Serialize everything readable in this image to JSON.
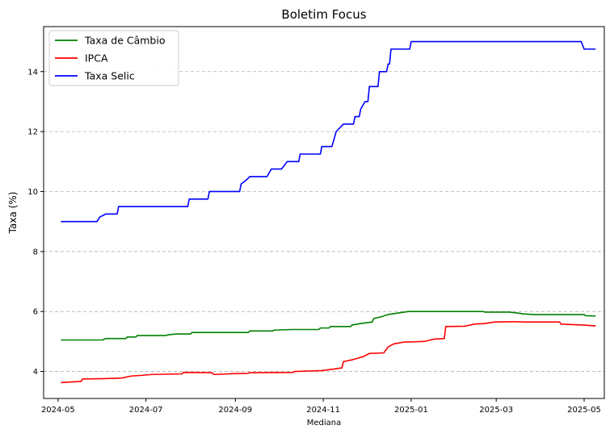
{
  "chart_data": {
    "type": "line",
    "title": "Boletim Focus",
    "xlabel": "Mediana",
    "ylabel": "Taxa (%)",
    "x_ticks": [
      "2024-05",
      "2024-07",
      "2024-09",
      "2024-11",
      "2025-01",
      "2025-03",
      "2025-05"
    ],
    "y_ticks": [
      4,
      6,
      8,
      10,
      12,
      14
    ],
    "xlim": [
      "2024-04-21",
      "2025-05-15"
    ],
    "ylim": [
      3.1,
      15.5
    ],
    "grid": "y-dashed",
    "legend_position": "top-left",
    "series": [
      {
        "name": "Taxa de Câmbio",
        "color": "#008000",
        "points": [
          [
            "2024-05-03",
            5.05
          ],
          [
            "2024-06-01",
            5.05
          ],
          [
            "2024-06-03",
            5.1
          ],
          [
            "2024-06-17",
            5.1
          ],
          [
            "2024-06-18",
            5.15
          ],
          [
            "2024-06-24",
            5.15
          ],
          [
            "2024-06-25",
            5.2
          ],
          [
            "2024-07-15",
            5.2
          ],
          [
            "2024-07-16",
            5.22
          ],
          [
            "2024-07-22",
            5.25
          ],
          [
            "2024-08-01",
            5.25
          ],
          [
            "2024-08-02",
            5.3
          ],
          [
            "2024-09-10",
            5.3
          ],
          [
            "2024-09-11",
            5.35
          ],
          [
            "2024-09-27",
            5.35
          ],
          [
            "2024-09-28",
            5.38
          ],
          [
            "2024-10-10",
            5.4
          ],
          [
            "2024-10-29",
            5.4
          ],
          [
            "2024-10-30",
            5.45
          ],
          [
            "2024-11-05",
            5.45
          ],
          [
            "2024-11-06",
            5.5
          ],
          [
            "2024-11-20",
            5.5
          ],
          [
            "2024-11-21",
            5.55
          ],
          [
            "2024-11-27",
            5.6
          ],
          [
            "2024-12-05",
            5.65
          ],
          [
            "2024-12-06",
            5.77
          ],
          [
            "2024-12-11",
            5.82
          ],
          [
            "2024-12-16",
            5.9
          ],
          [
            "2024-12-23",
            5.95
          ],
          [
            "2024-12-30",
            6.0
          ],
          [
            "2025-02-20",
            6.0
          ],
          [
            "2025-02-21",
            5.98
          ],
          [
            "2025-03-10",
            5.98
          ],
          [
            "2025-03-14",
            5.96
          ],
          [
            "2025-03-20",
            5.92
          ],
          [
            "2025-03-27",
            5.9
          ],
          [
            "2025-05-01",
            5.9
          ],
          [
            "2025-05-02",
            5.86
          ],
          [
            "2025-05-09",
            5.85
          ]
        ]
      },
      {
        "name": "IPCA",
        "color": "#ff0000",
        "points": [
          [
            "2024-05-03",
            3.63
          ],
          [
            "2024-05-10",
            3.65
          ],
          [
            "2024-05-17",
            3.67
          ],
          [
            "2024-05-18",
            3.75
          ],
          [
            "2024-06-01",
            3.76
          ],
          [
            "2024-06-14",
            3.78
          ],
          [
            "2024-06-21",
            3.85
          ],
          [
            "2024-06-28",
            3.87
          ],
          [
            "2024-07-05",
            3.9
          ],
          [
            "2024-07-26",
            3.92
          ],
          [
            "2024-07-27",
            3.97
          ],
          [
            "2024-08-16",
            3.96
          ],
          [
            "2024-08-17",
            3.9
          ],
          [
            "2024-08-31",
            3.93
          ],
          [
            "2024-09-10",
            3.94
          ],
          [
            "2024-09-11",
            3.96
          ],
          [
            "2024-10-11",
            3.97
          ],
          [
            "2024-10-12",
            4.0
          ],
          [
            "2024-10-31",
            4.03
          ],
          [
            "2024-11-08",
            4.08
          ],
          [
            "2024-11-14",
            4.12
          ],
          [
            "2024-11-15",
            4.33
          ],
          [
            "2024-11-22",
            4.4
          ],
          [
            "2024-11-29",
            4.5
          ],
          [
            "2024-12-03",
            4.6
          ],
          [
            "2024-12-13",
            4.62
          ],
          [
            "2024-12-16",
            4.82
          ],
          [
            "2024-12-20",
            4.92
          ],
          [
            "2024-12-27",
            4.98
          ],
          [
            "2025-01-10",
            5.0
          ],
          [
            "2025-01-17",
            5.08
          ],
          [
            "2025-01-24",
            5.1
          ],
          [
            "2025-01-25",
            5.5
          ],
          [
            "2025-02-07",
            5.51
          ],
          [
            "2025-02-14",
            5.58
          ],
          [
            "2025-02-21",
            5.6
          ],
          [
            "2025-02-28",
            5.65
          ],
          [
            "2025-03-14",
            5.66
          ],
          [
            "2025-03-21",
            5.65
          ],
          [
            "2025-04-14",
            5.65
          ],
          [
            "2025-04-15",
            5.58
          ],
          [
            "2025-04-30",
            5.55
          ],
          [
            "2025-05-09",
            5.52
          ]
        ]
      },
      {
        "name": "Taxa Selic",
        "color": "#0000ff",
        "points": [
          [
            "2024-05-03",
            9.0
          ],
          [
            "2024-05-28",
            9.0
          ],
          [
            "2024-05-30",
            9.15
          ],
          [
            "2024-06-03",
            9.25
          ],
          [
            "2024-06-11",
            9.25
          ],
          [
            "2024-06-12",
            9.5
          ],
          [
            "2024-07-30",
            9.5
          ],
          [
            "2024-07-31",
            9.75
          ],
          [
            "2024-08-13",
            9.75
          ],
          [
            "2024-08-14",
            10.0
          ],
          [
            "2024-09-04",
            10.0
          ],
          [
            "2024-09-05",
            10.25
          ],
          [
            "2024-09-09",
            10.4
          ],
          [
            "2024-09-11",
            10.5
          ],
          [
            "2024-09-23",
            10.5
          ],
          [
            "2024-09-26",
            10.75
          ],
          [
            "2024-10-03",
            10.75
          ],
          [
            "2024-10-07",
            11.0
          ],
          [
            "2024-10-15",
            11.0
          ],
          [
            "2024-10-16",
            11.25
          ],
          [
            "2024-10-30",
            11.25
          ],
          [
            "2024-10-31",
            11.5
          ],
          [
            "2024-11-07",
            11.5
          ],
          [
            "2024-11-10",
            12.0
          ],
          [
            "2024-11-15",
            12.25
          ],
          [
            "2024-11-22",
            12.25
          ],
          [
            "2024-11-23",
            12.5
          ],
          [
            "2024-11-26",
            12.5
          ],
          [
            "2024-11-27",
            12.75
          ],
          [
            "2024-11-30",
            13.0
          ],
          [
            "2024-12-02",
            13.0
          ],
          [
            "2024-12-03",
            13.5
          ],
          [
            "2024-12-09",
            13.5
          ],
          [
            "2024-12-10",
            14.0
          ],
          [
            "2024-12-15",
            14.0
          ],
          [
            "2024-12-16",
            14.25
          ],
          [
            "2024-12-17",
            14.25
          ],
          [
            "2024-12-18",
            14.75
          ],
          [
            "2024-12-31",
            14.75
          ],
          [
            "2025-01-01",
            15.0
          ],
          [
            "2025-04-29",
            15.0
          ],
          [
            "2025-05-01",
            14.75
          ],
          [
            "2025-05-09",
            14.75
          ]
        ]
      }
    ]
  }
}
